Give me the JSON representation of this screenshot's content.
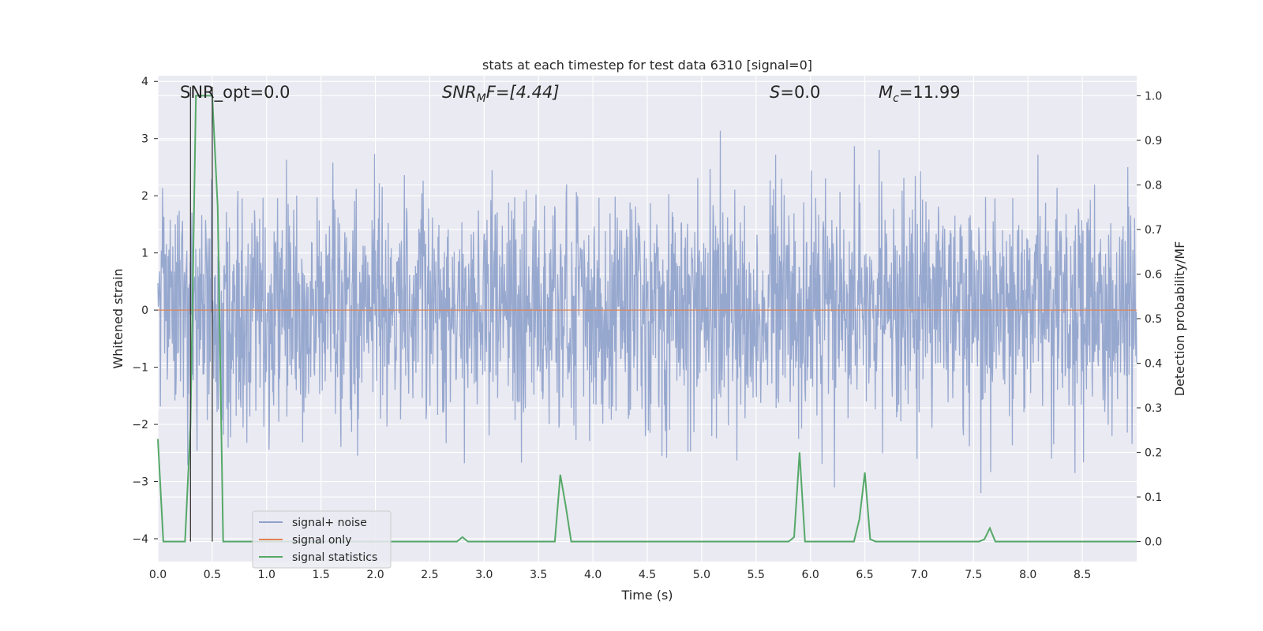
{
  "chart_data": {
    "type": "line",
    "title": "stats at each timestep for test data 6310 [signal=0]",
    "xlabel": "Time (s)",
    "ylabel": "Whitened strain",
    "y2label": "Detection probability/MF",
    "xlim": [
      0.0,
      9.0
    ],
    "ylim": [
      -4.4,
      4.1
    ],
    "y2lim": [
      -0.045,
      1.045
    ],
    "xticks": [
      "0.0",
      "0.5",
      "1.0",
      "1.5",
      "2.0",
      "2.5",
      "3.0",
      "3.5",
      "4.0",
      "4.5",
      "5.0",
      "5.5",
      "6.0",
      "6.5",
      "7.0",
      "7.5",
      "8.0",
      "8.5"
    ],
    "yticks": [
      "4",
      "3",
      "2",
      "1",
      "0",
      "−1",
      "−2",
      "−3",
      "−4"
    ],
    "y2ticks": [
      "1.0",
      "0.9",
      "0.8",
      "0.7",
      "0.6",
      "0.5",
      "0.4",
      "0.3",
      "0.2",
      "0.1",
      "0.0"
    ],
    "grid": true,
    "legend_position": "lower-left",
    "annotations": [
      {
        "id": "snr-opt",
        "text": "SNR_opt=0.0",
        "x": 0.2
      },
      {
        "id": "snr-mf",
        "text_pre": "SNR",
        "text_sub": "M",
        "text_post": "F=[4.44]",
        "x": 2.6
      },
      {
        "id": "s",
        "text_pre": "S",
        "text_post": "=0.0",
        "x": 5.6
      },
      {
        "id": "mc",
        "text_pre": "M",
        "text_sub": "c",
        "text_post": "=11.99",
        "x": 6.6
      }
    ],
    "markers_x": [
      0.3,
      0.5
    ],
    "series": [
      {
        "name": "signal+ noise",
        "color": "#8ea1cb",
        "kind": "noise",
        "sigma": 1.0,
        "seed": 6310
      },
      {
        "name": "signal only",
        "color": "#dd8452",
        "x": [
          0.0,
          9.0
        ],
        "y": [
          0.0,
          0.0
        ]
      },
      {
        "name": "signal statistics",
        "color": "#55a868",
        "axis": "right",
        "x": [
          0.0,
          0.05,
          0.25,
          0.3,
          0.35,
          0.4,
          0.45,
          0.5,
          0.55,
          0.6,
          0.65,
          2.75,
          2.8,
          2.85,
          2.9,
          3.6,
          3.65,
          3.7,
          3.75,
          3.8,
          3.85,
          5.8,
          5.85,
          5.9,
          5.95,
          6.35,
          6.4,
          6.45,
          6.5,
          6.55,
          6.6,
          6.65,
          7.55,
          7.6,
          7.65,
          7.7,
          7.75,
          9.0
        ],
        "y": [
          0.23,
          0.0,
          0.0,
          0.26,
          1.0,
          1.0,
          1.0,
          1.0,
          0.75,
          0.0,
          0.0,
          0.0,
          0.01,
          0.0,
          0.0,
          0.0,
          0.0,
          0.15,
          0.08,
          0.0,
          0.0,
          0.0,
          0.01,
          0.2,
          0.0,
          0.0,
          0.0,
          0.05,
          0.155,
          0.005,
          0.0,
          0.0,
          0.0,
          0.005,
          0.03,
          0.0,
          0.0,
          0.0
        ]
      }
    ]
  }
}
